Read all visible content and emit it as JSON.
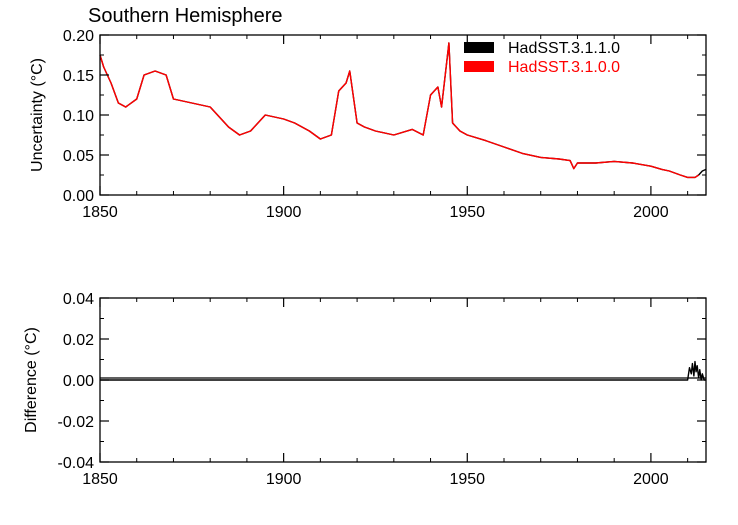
{
  "chart_data": [
    {
      "type": "line",
      "title": "Southern Hemisphere",
      "xlabel": "",
      "ylabel": "Uncertainty (°C)",
      "xlim": [
        1850,
        2015
      ],
      "ylim": [
        0.0,
        0.2
      ],
      "x_ticks": [
        "1850",
        "1900",
        "1950",
        "2000"
      ],
      "y_ticks": [
        "0.00",
        "0.05",
        "0.10",
        "0.15",
        "0.20"
      ],
      "legend_position": "top-right",
      "grid": false,
      "series": [
        {
          "name": "HadSST.3.1.1.0",
          "color": "#000000",
          "x": [
            1850,
            1851,
            1852,
            1853,
            1855,
            1857,
            1860,
            1862,
            1865,
            1868,
            1870,
            1875,
            1880,
            1883,
            1885,
            1888,
            1891,
            1895,
            1900,
            1903,
            1907,
            1910,
            1913,
            1915,
            1917,
            1918,
            1920,
            1922,
            1925,
            1930,
            1935,
            1938,
            1940,
            1942,
            1943,
            1945,
            1946,
            1948,
            1950,
            1955,
            1960,
            1965,
            1970,
            1975,
            1978,
            1979,
            1980,
            1985,
            1990,
            1995,
            2000,
            2003,
            2005,
            2008,
            2010,
            2012,
            2013,
            2014,
            2015
          ],
          "y": [
            0.175,
            0.16,
            0.15,
            0.14,
            0.115,
            0.11,
            0.12,
            0.15,
            0.155,
            0.15,
            0.12,
            0.115,
            0.11,
            0.095,
            0.085,
            0.075,
            0.08,
            0.1,
            0.095,
            0.09,
            0.08,
            0.07,
            0.075,
            0.13,
            0.14,
            0.155,
            0.09,
            0.085,
            0.08,
            0.075,
            0.082,
            0.075,
            0.125,
            0.135,
            0.11,
            0.19,
            0.09,
            0.08,
            0.075,
            0.068,
            0.06,
            0.052,
            0.047,
            0.045,
            0.043,
            0.033,
            0.04,
            0.04,
            0.042,
            0.04,
            0.036,
            0.032,
            0.03,
            0.025,
            0.022,
            0.022,
            0.025,
            0.03,
            0.032
          ]
        },
        {
          "name": "HadSST.3.1.0.0",
          "color": "#ff0000",
          "x": [
            1850,
            1851,
            1852,
            1853,
            1855,
            1857,
            1860,
            1862,
            1865,
            1868,
            1870,
            1875,
            1880,
            1883,
            1885,
            1888,
            1891,
            1895,
            1900,
            1903,
            1907,
            1910,
            1913,
            1915,
            1917,
            1918,
            1920,
            1922,
            1925,
            1930,
            1935,
            1938,
            1940,
            1942,
            1943,
            1945,
            1946,
            1948,
            1950,
            1955,
            1960,
            1965,
            1970,
            1975,
            1978,
            1979,
            1980,
            1985,
            1990,
            1995,
            2000,
            2003,
            2005,
            2008,
            2010,
            2012,
            2013
          ],
          "y": [
            0.175,
            0.16,
            0.15,
            0.14,
            0.115,
            0.11,
            0.12,
            0.15,
            0.155,
            0.15,
            0.12,
            0.115,
            0.11,
            0.095,
            0.085,
            0.075,
            0.08,
            0.1,
            0.095,
            0.09,
            0.08,
            0.07,
            0.075,
            0.13,
            0.14,
            0.155,
            0.09,
            0.085,
            0.08,
            0.075,
            0.082,
            0.075,
            0.125,
            0.135,
            0.11,
            0.19,
            0.09,
            0.08,
            0.075,
            0.068,
            0.06,
            0.052,
            0.047,
            0.045,
            0.043,
            0.033,
            0.04,
            0.04,
            0.042,
            0.04,
            0.036,
            0.032,
            0.03,
            0.025,
            0.022,
            0.022,
            0.025
          ]
        }
      ]
    },
    {
      "type": "line",
      "title": "",
      "xlabel": "",
      "ylabel": "Difference (°C)",
      "xlim": [
        1850,
        2015
      ],
      "ylim": [
        -0.04,
        0.04
      ],
      "x_ticks": [
        "1850",
        "1900",
        "1950",
        "2000"
      ],
      "y_ticks": [
        "-0.04",
        "-0.02",
        "0.00",
        "0.02",
        "0.04"
      ],
      "grid": false,
      "series": [
        {
          "color": "#000000",
          "x": [
            1850,
            2010,
            2010.5,
            2011,
            2011.3,
            2011.7,
            2012,
            2012.3,
            2012.6,
            2013,
            2013.3,
            2013.7,
            2014,
            2014.5,
            2015
          ],
          "y": [
            0.0,
            0.0,
            0.006,
            0.003,
            0.008,
            0.002,
            0.009,
            0.004,
            0.007,
            0.001,
            0.005,
            0.0,
            0.003,
            0.0,
            0.0
          ]
        }
      ]
    }
  ]
}
